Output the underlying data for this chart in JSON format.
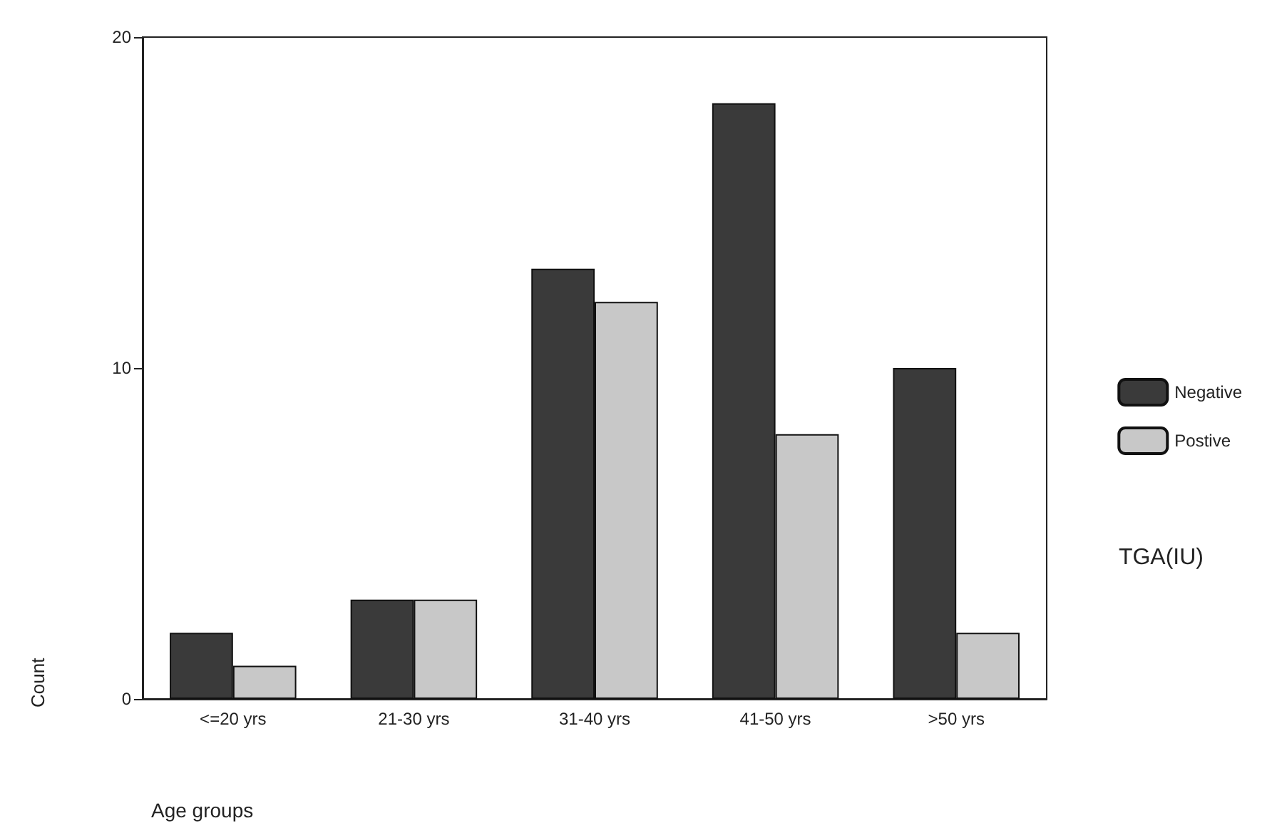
{
  "chart_data": {
    "type": "bar",
    "xlabel": "Age groups",
    "ylabel": "Count",
    "legend_title": "TGA(IU)",
    "categories": [
      "<=20 yrs",
      "21-30 yrs",
      "31-40 yrs",
      "41-50 yrs",
      ">50 yrs"
    ],
    "series": [
      {
        "name": "Negative",
        "color": "#3a3a3a",
        "values": [
          2,
          3,
          13,
          18,
          10
        ]
      },
      {
        "name": "Postive",
        "color": "#c8c8c8",
        "values": [
          1,
          3,
          12,
          8,
          2
        ]
      }
    ],
    "ylim": [
      0,
      20
    ],
    "yticks": [
      0,
      10,
      20
    ],
    "grid": false,
    "legend": "right"
  }
}
